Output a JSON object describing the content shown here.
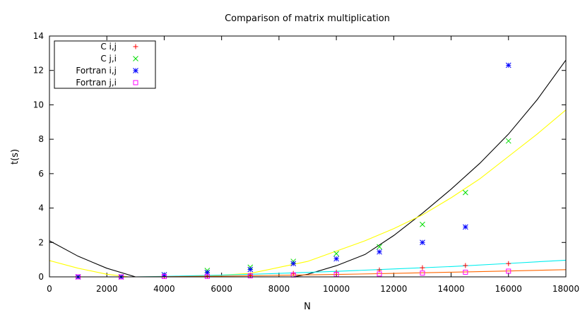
{
  "chart_data": {
    "type": "scatter",
    "title": "Comparison of matrix multiplication",
    "xlabel": "N",
    "ylabel": "t(s)",
    "xlim": [
      0,
      18000
    ],
    "ylim": [
      0,
      14
    ],
    "xticks": [
      0,
      2000,
      4000,
      6000,
      8000,
      10000,
      12000,
      14000,
      16000,
      18000
    ],
    "yticks": [
      0,
      2,
      4,
      6,
      8,
      10,
      12,
      14
    ],
    "grid": false,
    "legend_position": "top-left",
    "series": [
      {
        "name": "C i,j",
        "marker": "plus",
        "color": "#ff0000",
        "x": [
          1000,
          2500,
          4000,
          5500,
          7000,
          8500,
          10000,
          11500,
          13000,
          14500,
          16000
        ],
        "y": [
          0.0,
          0.0,
          0.02,
          0.05,
          0.1,
          0.2,
          0.27,
          0.4,
          0.53,
          0.66,
          0.77
        ]
      },
      {
        "name": "C j,i",
        "marker": "cross",
        "color": "#00dd00",
        "x": [
          1000,
          2500,
          4000,
          5500,
          7000,
          8500,
          10000,
          11500,
          13000,
          14500,
          16000
        ],
        "y": [
          0.0,
          0.0,
          0.12,
          0.37,
          0.56,
          0.9,
          1.35,
          1.75,
          3.05,
          4.9,
          7.9
        ]
      },
      {
        "name": "Fortran i,j",
        "marker": "star",
        "color": "#0000ff",
        "x": [
          1000,
          2500,
          4000,
          5500,
          7000,
          8500,
          10000,
          11500,
          13000,
          14500,
          16000
        ],
        "y": [
          0.0,
          0.0,
          0.12,
          0.25,
          0.43,
          0.77,
          1.05,
          1.45,
          2.0,
          2.9,
          12.3
        ]
      },
      {
        "name": "Fortran j,i",
        "marker": "square",
        "color": "#ff00ff",
        "x": [
          1000,
          2500,
          4000,
          5500,
          7000,
          8500,
          10000,
          11500,
          13000,
          14500,
          16000
        ],
        "y": [
          0.0,
          0.0,
          0.02,
          0.03,
          0.06,
          0.11,
          0.14,
          0.17,
          0.22,
          0.27,
          0.33
        ]
      }
    ],
    "fit_curves": [
      {
        "color": "#000000",
        "x": [
          0,
          1000,
          2000,
          3000,
          4000,
          5000,
          6000,
          7000,
          8000,
          8500,
          9000,
          10000,
          11000,
          12000,
          13000,
          14000,
          15000,
          16000,
          17000,
          18000
        ],
        "y": [
          2.1,
          1.2,
          0.5,
          0.0,
          -0.3,
          -0.5,
          -0.55,
          -0.4,
          -0.12,
          0.0,
          0.15,
          0.65,
          1.3,
          2.4,
          3.7,
          5.1,
          6.6,
          8.3,
          10.3,
          12.6
        ]
      },
      {
        "color": "#ffff00",
        "x": [
          0,
          1000,
          2000,
          3000,
          4000,
          5000,
          6000,
          7000,
          8000,
          9000,
          10000,
          11000,
          12000,
          13000,
          14000,
          15000,
          16000,
          17000,
          18000
        ],
        "y": [
          0.95,
          0.5,
          0.15,
          -0.05,
          0.0,
          0.05,
          0.1,
          0.2,
          0.55,
          0.9,
          1.5,
          2.1,
          2.8,
          3.6,
          4.6,
          5.7,
          7.0,
          8.3,
          9.7
        ]
      },
      {
        "color": "#00eeee",
        "x": [
          0,
          2000,
          3000,
          4000,
          6000,
          8000,
          10000,
          12000,
          14000,
          16000,
          18000
        ],
        "y": [
          -0.1,
          -0.05,
          0.0,
          0.03,
          0.1,
          0.2,
          0.32,
          0.46,
          0.6,
          0.78,
          0.97
        ]
      },
      {
        "color": "#ff6600",
        "x": [
          0,
          2000,
          3000,
          4000,
          6000,
          8000,
          10000,
          12000,
          14000,
          16000,
          18000
        ],
        "y": [
          -0.05,
          -0.02,
          0.0,
          0.01,
          0.04,
          0.09,
          0.14,
          0.2,
          0.27,
          0.34,
          0.42
        ]
      }
    ]
  }
}
